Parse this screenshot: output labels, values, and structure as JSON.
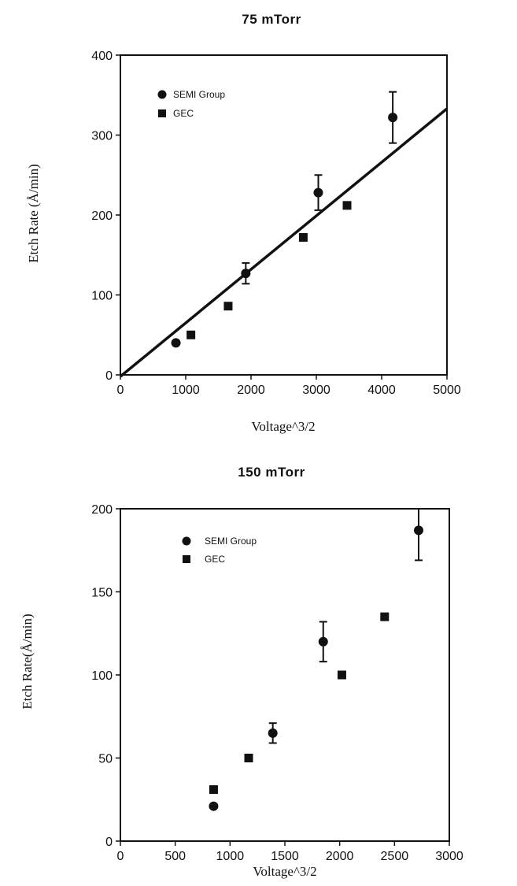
{
  "chart_data": [
    {
      "type": "scatter",
      "title": "75  mTorr",
      "xlabel": "Voltage^3/2",
      "ylabel": "Etch Rate (Å/min)",
      "xlim": [
        0,
        5000
      ],
      "ylim": [
        0,
        400
      ],
      "xticks": [
        0,
        1000,
        2000,
        3000,
        4000,
        5000
      ],
      "yticks": [
        0,
        100,
        200,
        300,
        400
      ],
      "legend_position": "top-left",
      "series": [
        {
          "name": "SEMI Group",
          "marker": "circle",
          "points": [
            {
              "x": 850,
              "y": 40
            },
            {
              "x": 1920,
              "y": 127,
              "err": 13
            },
            {
              "x": 3030,
              "y": 228,
              "err": 22
            },
            {
              "x": 4170,
              "y": 322,
              "err": 32
            }
          ]
        },
        {
          "name": "GEC",
          "marker": "square",
          "points": [
            {
              "x": 1080,
              "y": 50
            },
            {
              "x": 1650,
              "y": 86
            },
            {
              "x": 2800,
              "y": 172
            },
            {
              "x": 3470,
              "y": 212
            }
          ]
        }
      ],
      "fit_line": {
        "x": [
          0,
          5000
        ],
        "y": [
          -2,
          333
        ]
      }
    },
    {
      "type": "scatter",
      "title": "150   mTorr",
      "xlabel": "Voltage^3/2",
      "ylabel": "Etch Rate(Å/min)",
      "xlim": [
        0,
        3000
      ],
      "ylim": [
        0,
        200
      ],
      "xticks": [
        0,
        500,
        1000,
        1500,
        2000,
        2500,
        3000
      ],
      "yticks": [
        0,
        50,
        100,
        150,
        200
      ],
      "legend_position": "top-left",
      "series": [
        {
          "name": "SEMI Group",
          "marker": "circle",
          "points": [
            {
              "x": 850,
              "y": 21
            },
            {
              "x": 1390,
              "y": 65,
              "err": 6
            },
            {
              "x": 1850,
              "y": 120,
              "err": 12
            },
            {
              "x": 2720,
              "y": 187,
              "err": 18
            }
          ]
        },
        {
          "name": "GEC",
          "marker": "square",
          "points": [
            {
              "x": 850,
              "y": 31
            },
            {
              "x": 1170,
              "y": 50
            },
            {
              "x": 2020,
              "y": 100
            },
            {
              "x": 2410,
              "y": 135
            }
          ]
        }
      ]
    }
  ]
}
